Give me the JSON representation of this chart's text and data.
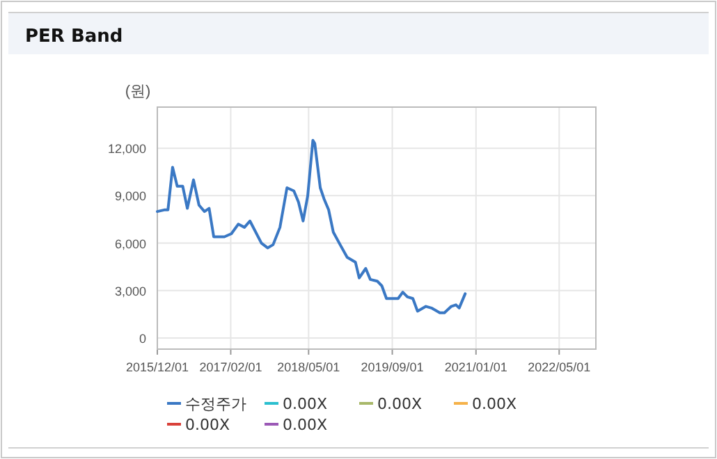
{
  "chart_data": {
    "type": "line",
    "title": "PER Band",
    "ylabel": "(원)",
    "x": [
      "2015-12-01",
      "2016-01-10",
      "2016-02-01",
      "2016-02-28",
      "2016-03-26",
      "2016-04-27",
      "2016-05-24",
      "2016-06-29",
      "2016-07-31",
      "2016-09-01",
      "2016-09-28",
      "2016-10-25",
      "2016-12-26",
      "2017-02-05",
      "2017-03-17",
      "2017-04-22",
      "2017-05-24",
      "2017-07-30",
      "2017-09-04",
      "2017-10-06",
      "2017-11-15",
      "2017-12-26",
      "2018-02-04",
      "2018-03-03",
      "2018-03-30",
      "2018-04-26",
      "2018-05-26",
      "2018-06-06",
      "2018-07-08",
      "2018-07-30",
      "2018-08-26",
      "2018-09-22",
      "2018-11-01",
      "2018-12-12",
      "2019-01-29",
      "2019-02-20",
      "2019-03-30",
      "2019-04-26",
      "2019-06-05",
      "2019-07-02",
      "2019-07-29",
      "2019-10-05",
      "2019-11-01",
      "2019-11-28",
      "2019-12-30",
      "2020-01-26",
      "2020-03-15",
      "2020-04-16",
      "2020-06-04",
      "2020-07-01",
      "2020-08-10",
      "2020-09-06",
      "2020-09-25",
      "2020-10-30"
    ],
    "series": [
      {
        "name": "수정주가",
        "color": "#3a78c4",
        "values": [
          8000,
          8100,
          8100,
          10800,
          9600,
          9600,
          8200,
          10000,
          8400,
          8000,
          8200,
          6400,
          6400,
          6600,
          7200,
          7000,
          7400,
          6000,
          5700,
          5900,
          7000,
          9500,
          9300,
          8600,
          7400,
          9000,
          12500,
          12300,
          9500,
          8800,
          8100,
          6700,
          5900,
          5100,
          4800,
          3800,
          4400,
          3700,
          3600,
          3300,
          2500,
          2500,
          2900,
          2600,
          2500,
          1700,
          2000,
          1900,
          1600,
          1600,
          2000,
          2100,
          1900,
          2800
        ]
      },
      {
        "name": "0.00X",
        "color": "#2bbfcf",
        "values": [
          null,
          null,
          null,
          null,
          null,
          null,
          null,
          null,
          null,
          null,
          null,
          null,
          null,
          null,
          null,
          null,
          null,
          null,
          null,
          null,
          null,
          null,
          null,
          null,
          null,
          null,
          null,
          null,
          null,
          null,
          null,
          null,
          null,
          null,
          null,
          null,
          null,
          null,
          null,
          null,
          null,
          null,
          null,
          null,
          null,
          null,
          null,
          null,
          null,
          null,
          null,
          null,
          null,
          null
        ]
      },
      {
        "name": "0.00X",
        "color": "#a8b86a",
        "values": [
          null,
          null,
          null,
          null,
          null,
          null,
          null,
          null,
          null,
          null,
          null,
          null,
          null,
          null,
          null,
          null,
          null,
          null,
          null,
          null,
          null,
          null,
          null,
          null,
          null,
          null,
          null,
          null,
          null,
          null,
          null,
          null,
          null,
          null,
          null,
          null,
          null,
          null,
          null,
          null,
          null,
          null,
          null,
          null,
          null,
          null,
          null,
          null,
          null,
          null,
          null,
          null,
          null,
          null
        ]
      },
      {
        "name": "0.00X",
        "color": "#f5b24a",
        "values": [
          null,
          null,
          null,
          null,
          null,
          null,
          null,
          null,
          null,
          null,
          null,
          null,
          null,
          null,
          null,
          null,
          null,
          null,
          null,
          null,
          null,
          null,
          null,
          null,
          null,
          null,
          null,
          null,
          null,
          null,
          null,
          null,
          null,
          null,
          null,
          null,
          null,
          null,
          null,
          null,
          null,
          null,
          null,
          null,
          null,
          null,
          null,
          null,
          null,
          null,
          null,
          null,
          null,
          null
        ]
      },
      {
        "name": "0.00X",
        "color": "#d9413a",
        "values": [
          null,
          null,
          null,
          null,
          null,
          null,
          null,
          null,
          null,
          null,
          null,
          null,
          null,
          null,
          null,
          null,
          null,
          null,
          null,
          null,
          null,
          null,
          null,
          null,
          null,
          null,
          null,
          null,
          null,
          null,
          null,
          null,
          null,
          null,
          null,
          null,
          null,
          null,
          null,
          null,
          null,
          null,
          null,
          null,
          null,
          null,
          null,
          null,
          null,
          null,
          null,
          null,
          null,
          null
        ]
      },
      {
        "name": "0.00X",
        "color": "#9b59b6",
        "values": [
          null,
          null,
          null,
          null,
          null,
          null,
          null,
          null,
          null,
          null,
          null,
          null,
          null,
          null,
          null,
          null,
          null,
          null,
          null,
          null,
          null,
          null,
          null,
          null,
          null,
          null,
          null,
          null,
          null,
          null,
          null,
          null,
          null,
          null,
          null,
          null,
          null,
          null,
          null,
          null,
          null,
          null,
          null,
          null,
          null,
          null,
          null,
          null,
          null,
          null,
          null,
          null,
          null,
          null
        ]
      }
    ],
    "xlim": [
      "2015-12-01",
      "2022-12-01"
    ],
    "xticks": [
      {
        "value": "2015-12-01",
        "label": "2015/12/01"
      },
      {
        "value": "2017-02-01",
        "label": "2017/02/01"
      },
      {
        "value": "2018-05-01",
        "label": "2018/05/01"
      },
      {
        "value": "2019-09-01",
        "label": "2019/09/01"
      },
      {
        "value": "2021-01-01",
        "label": "2021/01/01"
      },
      {
        "value": "2022-05-01",
        "label": "2022/05/01"
      }
    ],
    "ylim": [
      -700,
      14600
    ],
    "yticks": [
      0,
      {
        "value": 3000,
        "label": "3,000"
      },
      {
        "value": 6000,
        "label": "6,000"
      },
      {
        "value": 9000,
        "label": "9,000"
      },
      {
        "value": 12000,
        "label": "12,000"
      }
    ],
    "grid": true,
    "legend": "bottom",
    "marker": "none",
    "line_style": "solid"
  }
}
